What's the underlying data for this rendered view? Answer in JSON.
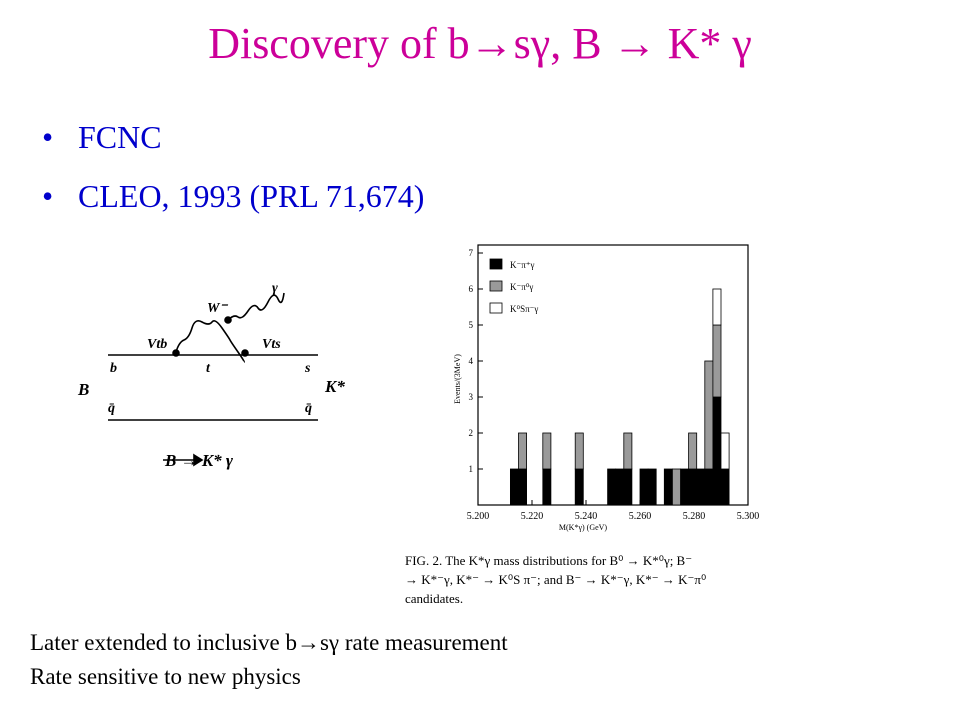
{
  "slide": {
    "title": "Discovery of b→sγ, B → K* γ",
    "bullets": [
      "FCNC",
      "CLEO, 1993 (PRL 71,674)"
    ],
    "notes": [
      "Later extended to inclusive b→sγ rate measurement",
      "Rate sensitive to new physics"
    ]
  },
  "diagram": {
    "labels": {
      "w": "W⁻",
      "gamma": "γ",
      "vtb": "Vtb",
      "vts": "Vts",
      "b": "b",
      "t": "t",
      "s": "s",
      "B": "B",
      "Kstar": "K*",
      "qbar_left": "q̄",
      "qbar_right": "q̄",
      "process": "B → K* γ"
    }
  },
  "chart_data": {
    "type": "histogram",
    "x_label": "M(K*γ) (GeV)",
    "y_label": "Events/(3MeV)",
    "caption": [
      "FIG. 2. The K*γ mass distributions for B⁰ → K*⁰γ; B⁻",
      "→ K*⁻γ, K*⁻ → K⁰S π⁻; and B⁻ → K*⁻γ, K*⁻ → K⁻π⁰",
      "candidates."
    ],
    "bins": [
      5.212,
      5.215,
      5.218,
      5.221,
      5.224,
      5.227,
      5.23,
      5.233,
      5.236,
      5.239,
      5.242,
      5.245,
      5.248,
      5.251,
      5.254,
      5.257,
      5.26,
      5.263,
      5.266,
      5.269,
      5.272,
      5.275,
      5.278,
      5.281,
      5.284,
      5.287,
      5.29,
      5.293
    ],
    "stacked": true,
    "series": [
      {
        "name": "K⁻π⁺γ",
        "color": "#000000",
        "values": [
          1,
          1,
          0,
          0,
          1,
          0,
          0,
          0,
          1,
          0,
          0,
          0,
          1,
          1,
          1,
          0,
          1,
          1,
          0,
          1,
          0,
          1,
          1,
          1,
          1,
          3,
          1
        ]
      },
      {
        "name": "K⁻π⁰γ",
        "color": "#9a9a9a",
        "values": [
          0,
          1,
          0,
          0,
          1,
          0,
          0,
          0,
          1,
          0,
          0,
          0,
          0,
          0,
          1,
          0,
          0,
          0,
          0,
          0,
          1,
          0,
          1,
          0,
          3,
          2,
          0
        ]
      },
      {
        "name": "K⁰Sπ⁻γ",
        "color": "#ffffff",
        "values": [
          0,
          0,
          0,
          0,
          0,
          0,
          0,
          0,
          0,
          0,
          0,
          0,
          0,
          0,
          0,
          0,
          0,
          0,
          0,
          0,
          0,
          0,
          0,
          0,
          0,
          1,
          1
        ]
      }
    ],
    "xlim": [
      5.2,
      5.3
    ],
    "xticks": [
      {
        "value": 5.2,
        "label": "5.200"
      },
      {
        "value": 5.22,
        "label": "5.220"
      },
      {
        "value": 5.24,
        "label": "5.240"
      },
      {
        "value": 5.26,
        "label": "5.260"
      },
      {
        "value": 5.28,
        "label": "5.280"
      },
      {
        "value": 5.3,
        "label": "5.300"
      }
    ],
    "ylim": [
      0,
      7
    ],
    "yticks": [
      1,
      2,
      3,
      4,
      5,
      6,
      7
    ]
  }
}
